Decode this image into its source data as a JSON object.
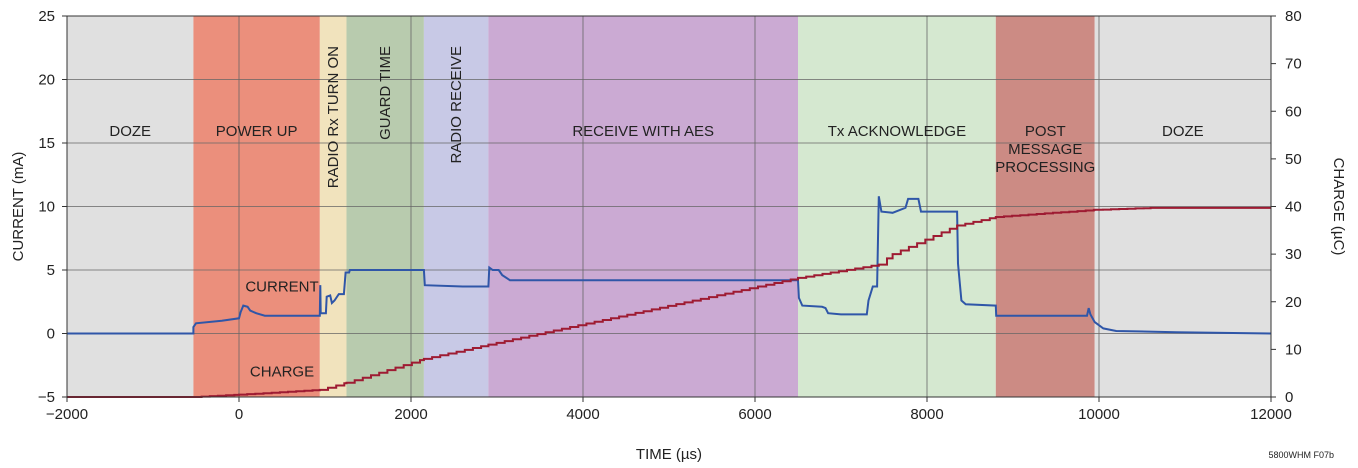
{
  "figure_id": "5800WHM F07b",
  "chart_data": {
    "type": "line",
    "xlabel": "TIME (µs)",
    "ylabel_left": "CURRENT (mA)",
    "ylabel_right": "CHARGE (µC)",
    "xlim": [
      -2000,
      12000
    ],
    "ylim_left": [
      -5,
      25
    ],
    "ylim_right": [
      0,
      80
    ],
    "x_ticks": [
      -2000,
      0,
      2000,
      4000,
      6000,
      8000,
      10000,
      12000
    ],
    "x_tick_labels": [
      "−2000",
      "0",
      "2000",
      "4000",
      "6000",
      "8000",
      "10000",
      "12000"
    ],
    "y_left_ticks": [
      -5,
      0,
      5,
      10,
      15,
      20,
      25
    ],
    "y_left_tick_labels": [
      "−5",
      "0",
      "5",
      "10",
      "15",
      "20",
      "25"
    ],
    "y_right_ticks": [
      0,
      10,
      20,
      30,
      40,
      50,
      60,
      70,
      80
    ],
    "y_right_tick_labels": [
      "0",
      "10",
      "20",
      "30",
      "40",
      "50",
      "60",
      "70",
      "80"
    ],
    "grid": true,
    "regions": [
      {
        "label": "DOZE",
        "start": -2000,
        "end": -530,
        "color": "#e0e0e0",
        "orientation": "horizontal"
      },
      {
        "label": "POWER UP",
        "start": -530,
        "end": 940,
        "color": "#eb8f7c",
        "orientation": "horizontal"
      },
      {
        "label": "RADIO Rx TURN ON",
        "start": 940,
        "end": 1250,
        "color": "#f1e3bd",
        "orientation": "vertical"
      },
      {
        "label": "GUARD TIME",
        "start": 1250,
        "end": 2150,
        "color": "#b8cbae",
        "orientation": "vertical"
      },
      {
        "label": "RADIO RECEIVE",
        "start": 2150,
        "end": 2900,
        "color": "#c8c9e6",
        "orientation": "vertical"
      },
      {
        "label": "RECEIVE WITH AES",
        "start": 2900,
        "end": 6500,
        "color": "#cbaad3",
        "orientation": "horizontal"
      },
      {
        "label": "Tx ACKNOWLEDGE",
        "start": 6500,
        "end": 8800,
        "color": "#d5e8d0",
        "orientation": "horizontal"
      },
      {
        "label": "POST MESSAGE PROCESSING",
        "lines": [
          "POST",
          "MESSAGE",
          "PROCESSING"
        ],
        "start": 8800,
        "end": 9950,
        "color": "#cc8b84",
        "orientation": "horizontal"
      },
      {
        "label": "DOZE",
        "start": 9950,
        "end": 12000,
        "color": "#e0e0e0",
        "orientation": "horizontal"
      }
    ],
    "annotations": [
      {
        "text": "CURRENT",
        "x": 500,
        "y_axis": "left",
        "y": 3.3
      },
      {
        "text": "CHARGE",
        "x": 500,
        "y_axis": "left",
        "y": -3.4
      }
    ],
    "series": [
      {
        "name": "CURRENT",
        "axis": "left",
        "color": "#2f56a8",
        "points": [
          [
            -2000,
            0
          ],
          [
            -530,
            0
          ],
          [
            -530,
            0.5
          ],
          [
            -500,
            0.8
          ],
          [
            -200,
            1.0
          ],
          [
            0,
            1.2
          ],
          [
            20,
            1.7
          ],
          [
            50,
            2.2
          ],
          [
            100,
            2.1
          ],
          [
            130,
            1.8
          ],
          [
            200,
            1.6
          ],
          [
            300,
            1.4
          ],
          [
            500,
            1.4
          ],
          [
            700,
            1.4
          ],
          [
            940,
            1.4
          ],
          [
            945,
            3.8
          ],
          [
            950,
            1.6
          ],
          [
            1010,
            1.6
          ],
          [
            1020,
            2.9
          ],
          [
            1060,
            3.0
          ],
          [
            1080,
            2.4
          ],
          [
            1110,
            2.6
          ],
          [
            1160,
            3.1
          ],
          [
            1220,
            3.1
          ],
          [
            1240,
            4.8
          ],
          [
            1280,
            4.8
          ],
          [
            1290,
            5.0
          ],
          [
            2150,
            5.0
          ],
          [
            2160,
            3.8
          ],
          [
            2600,
            3.7
          ],
          [
            2900,
            3.7
          ],
          [
            2910,
            5.2
          ],
          [
            2950,
            5.0
          ],
          [
            3020,
            5.0
          ],
          [
            3060,
            4.6
          ],
          [
            3150,
            4.2
          ],
          [
            4500,
            4.2
          ],
          [
            6000,
            4.2
          ],
          [
            6500,
            4.2
          ],
          [
            6510,
            2.8
          ],
          [
            6550,
            2.2
          ],
          [
            6780,
            2.1
          ],
          [
            6820,
            2.0
          ],
          [
            6850,
            1.6
          ],
          [
            7000,
            1.5
          ],
          [
            7300,
            1.5
          ],
          [
            7320,
            2.6
          ],
          [
            7370,
            3.7
          ],
          [
            7420,
            3.7
          ],
          [
            7440,
            10.8
          ],
          [
            7470,
            9.6
          ],
          [
            7600,
            9.5
          ],
          [
            7750,
            9.9
          ],
          [
            7780,
            10.6
          ],
          [
            7900,
            10.6
          ],
          [
            7930,
            9.6
          ],
          [
            8350,
            9.6
          ],
          [
            8360,
            5.5
          ],
          [
            8400,
            2.6
          ],
          [
            8450,
            2.3
          ],
          [
            8800,
            2.2
          ],
          [
            8805,
            1.4
          ],
          [
            9500,
            1.4
          ],
          [
            9860,
            1.4
          ],
          [
            9880,
            2.0
          ],
          [
            9900,
            1.5
          ],
          [
            9950,
            0.9
          ],
          [
            10050,
            0.4
          ],
          [
            10200,
            0.2
          ],
          [
            10900,
            0.1
          ],
          [
            12000,
            0.0
          ]
        ]
      },
      {
        "name": "CHARGE",
        "axis": "right",
        "color": "#9e1b32",
        "points": [
          [
            -2000,
            0
          ],
          [
            -530,
            0
          ],
          [
            0,
            0.5
          ],
          [
            940,
            1.5
          ],
          [
            1250,
            3.0
          ],
          [
            2150,
            8.0
          ],
          [
            2900,
            11.0
          ],
          [
            6500,
            25.0
          ],
          [
            7440,
            27.8
          ],
          [
            7600,
            30.0
          ],
          [
            8350,
            36.0
          ],
          [
            8800,
            37.8
          ],
          [
            9950,
            39.3
          ],
          [
            10600,
            39.7
          ],
          [
            12000,
            39.7
          ]
        ]
      }
    ]
  }
}
